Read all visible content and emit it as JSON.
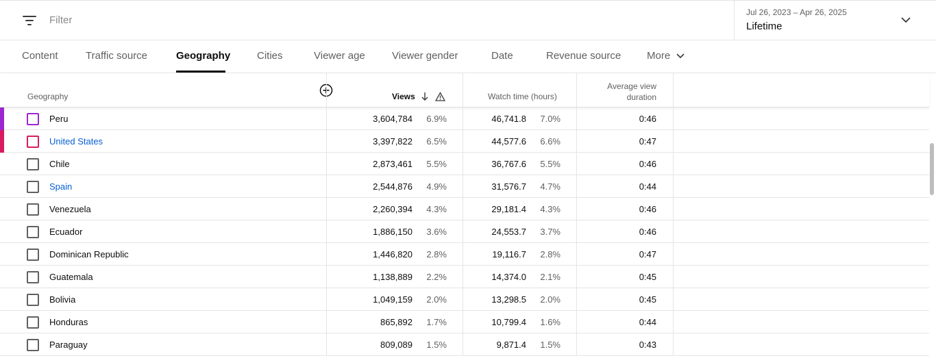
{
  "filter": {
    "placeholder": "Filter"
  },
  "date_range": {
    "range": "Jul 26, 2023 – Apr 26, 2025",
    "preset": "Lifetime"
  },
  "tabs": [
    {
      "label": "Content"
    },
    {
      "label": "Traffic source"
    },
    {
      "label": "Geography",
      "active": true
    },
    {
      "label": "Cities"
    },
    {
      "label": "Viewer age"
    },
    {
      "label": "Viewer gender"
    },
    {
      "label": "Date"
    },
    {
      "label": "Revenue source"
    },
    {
      "label": "More"
    }
  ],
  "table": {
    "headers": {
      "geography": "Geography",
      "views": "Views",
      "watch_time": "Watch time (hours)",
      "avg_view_duration": "Average view duration"
    },
    "rows": [
      {
        "name": "Peru",
        "views": "3,604,784",
        "views_pct": "6.9%",
        "watch": "46,741.8",
        "watch_pct": "7.0%",
        "avg": "0:46",
        "color": "#9c27d0",
        "link": false
      },
      {
        "name": "United States",
        "views": "3,397,822",
        "views_pct": "6.5%",
        "watch": "44,577.6",
        "watch_pct": "6.6%",
        "avg": "0:47",
        "color": "#d81b60",
        "link": true
      },
      {
        "name": "Chile",
        "views": "2,873,461",
        "views_pct": "5.5%",
        "watch": "36,767.6",
        "watch_pct": "5.5%",
        "avg": "0:46",
        "color": "",
        "link": false
      },
      {
        "name": "Spain",
        "views": "2,544,876",
        "views_pct": "4.9%",
        "watch": "31,576.7",
        "watch_pct": "4.7%",
        "avg": "0:44",
        "color": "",
        "link": true
      },
      {
        "name": "Venezuela",
        "views": "2,260,394",
        "views_pct": "4.3%",
        "watch": "29,181.4",
        "watch_pct": "4.3%",
        "avg": "0:46",
        "color": "",
        "link": false
      },
      {
        "name": "Ecuador",
        "views": "1,886,150",
        "views_pct": "3.6%",
        "watch": "24,553.7",
        "watch_pct": "3.7%",
        "avg": "0:46",
        "color": "",
        "link": false
      },
      {
        "name": "Dominican Republic",
        "views": "1,446,820",
        "views_pct": "2.8%",
        "watch": "19,116.7",
        "watch_pct": "2.8%",
        "avg": "0:47",
        "color": "",
        "link": false
      },
      {
        "name": "Guatemala",
        "views": "1,138,889",
        "views_pct": "2.2%",
        "watch": "14,374.0",
        "watch_pct": "2.1%",
        "avg": "0:45",
        "color": "",
        "link": false
      },
      {
        "name": "Bolivia",
        "views": "1,049,159",
        "views_pct": "2.0%",
        "watch": "13,298.5",
        "watch_pct": "2.0%",
        "avg": "0:45",
        "color": "",
        "link": false
      },
      {
        "name": "Honduras",
        "views": "865,892",
        "views_pct": "1.7%",
        "watch": "10,799.4",
        "watch_pct": "1.6%",
        "avg": "0:44",
        "color": "",
        "link": false
      },
      {
        "name": "Paraguay",
        "views": "809,089",
        "views_pct": "1.5%",
        "watch": "9,871.4",
        "watch_pct": "1.5%",
        "avg": "0:43",
        "color": "",
        "link": false
      }
    ]
  }
}
